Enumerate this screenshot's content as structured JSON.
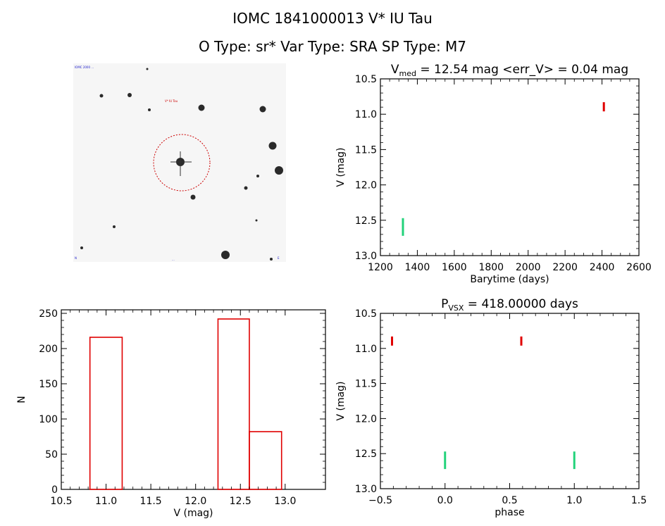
{
  "title_line1": "IOMC 1841000013    V* IU Tau",
  "title_line2": "O Type: sr*  Var Type: SRA  SP Type: M7",
  "finder": {
    "label_top_left": "IOMC 2000 ...",
    "label_target": "V* IU Tau",
    "label_bottom_left": "N",
    "label_bottom_center": "...",
    "label_bottom_right": "E"
  },
  "colors": {
    "series_red": "#e00000",
    "series_green": "#22d27a",
    "hist_bar": "#e00000",
    "circle": "#cc0000"
  },
  "chart_data": [
    {
      "id": "lightcurve",
      "type": "scatter",
      "title": "V_med = 12.54 mag <err_V> = 0.04 mag",
      "title_parts": {
        "v": "V",
        "sub": "med",
        "rest": " = 12.54 mag <err_V> = 0.04 mag"
      },
      "xlabel": "Barytime (days)",
      "ylabel": "V (mag)",
      "xlim": [
        1200,
        2600
      ],
      "ylim": [
        10.5,
        13.0
      ],
      "y_inverted": true,
      "xticks": [
        1200,
        1400,
        1600,
        1800,
        2000,
        2200,
        2400,
        2600
      ],
      "yticks": [
        10.5,
        11.0,
        11.5,
        12.0,
        12.5,
        13.0
      ],
      "series": [
        {
          "color": "red",
          "points": [
            {
              "x": 2410,
              "y_low": 10.83,
              "y_high": 10.96
            }
          ]
        },
        {
          "color": "green",
          "points": [
            {
              "x": 1322,
              "y_low": 12.47,
              "y_high": 12.72
            }
          ]
        }
      ]
    },
    {
      "id": "histogram",
      "type": "bar",
      "xlabel": "V (mag)",
      "ylabel": "N",
      "xlim": [
        10.5,
        13.45
      ],
      "ylim": [
        0,
        255
      ],
      "xticks": [
        10.5,
        11.0,
        11.5,
        12.0,
        12.5,
        13.0
      ],
      "yticks": [
        0,
        50,
        100,
        150,
        200,
        250
      ],
      "bins": [
        {
          "x0": 10.82,
          "x1": 11.18,
          "count": 216
        },
        {
          "x0": 12.25,
          "x1": 12.6,
          "count": 242
        },
        {
          "x0": 12.6,
          "x1": 12.96,
          "count": 82
        }
      ]
    },
    {
      "id": "phased",
      "type": "scatter",
      "title": "P_VSX = 418.00000 days",
      "title_parts": {
        "v": "P",
        "sub": "VSX",
        "rest": " = 418.00000 days"
      },
      "xlabel": "phase",
      "ylabel": "V (mag)",
      "xlim": [
        -0.5,
        1.5
      ],
      "ylim": [
        10.5,
        13.0
      ],
      "y_inverted": true,
      "xticks": [
        -0.5,
        0.0,
        0.5,
        1.0,
        1.5
      ],
      "xtick_labels": [
        "−0.5",
        "0.0",
        "0.5",
        "1.0",
        "1.5"
      ],
      "yticks": [
        10.5,
        11.0,
        11.5,
        12.0,
        12.5,
        13.0
      ],
      "series": [
        {
          "color": "red",
          "points": [
            {
              "x": -0.41,
              "y_low": 10.83,
              "y_high": 10.96
            },
            {
              "x": 0.59,
              "y_low": 10.83,
              "y_high": 10.96
            }
          ]
        },
        {
          "color": "green",
          "points": [
            {
              "x": 0.0,
              "y_low": 12.47,
              "y_high": 12.72
            },
            {
              "x": 1.0,
              "y_low": 12.47,
              "y_high": 12.72
            }
          ]
        }
      ]
    }
  ]
}
